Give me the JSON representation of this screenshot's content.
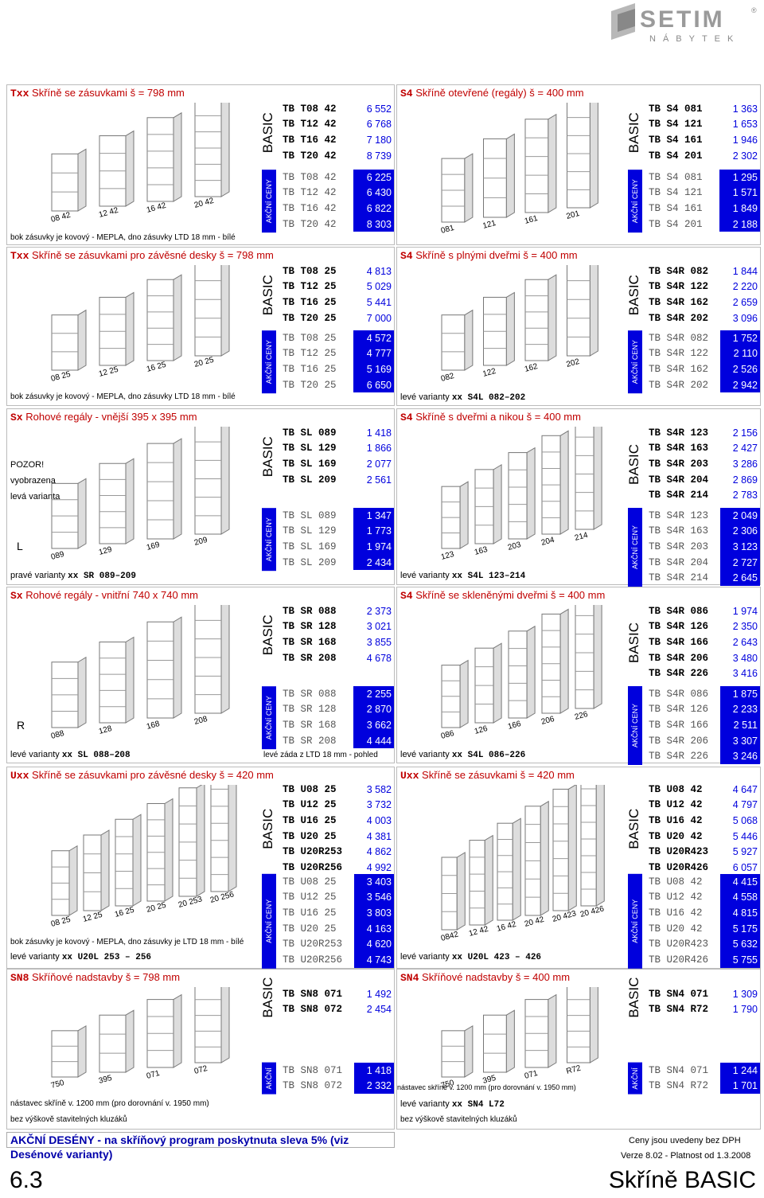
{
  "brand": {
    "name": "SETIM",
    "sub": "NÁBYTEK",
    "reg": "®"
  },
  "labels": {
    "basic": "BASIC",
    "akce": "AKČNÍ CENY"
  },
  "sections": [
    {
      "title_code": "Txx",
      "title_text": "Skříně se zásuvkami  š = 798 mm",
      "basic": [
        [
          "TB T08 42",
          "6 552"
        ],
        [
          "TB T12 42",
          "6 768"
        ],
        [
          "TB T16 42",
          "7 180"
        ],
        [
          "TB T20 42",
          "8 739"
        ]
      ],
      "akce": [
        [
          "TB T08 42",
          "6 225"
        ],
        [
          "TB T12 42",
          "6 430"
        ],
        [
          "TB T16 42",
          "6 822"
        ],
        [
          "TB T20 42",
          "8 303"
        ]
      ],
      "note": "bok zásuvky je kovový - MEPLA, dno zásuvky LTD 18 mm - bílé",
      "drawing_labels": [
        "08 42",
        "12 42",
        "16 42",
        "20 42"
      ]
    },
    {
      "title_code": "S4",
      "title_text": "Skříně otevřené (regály)  š = 400 mm",
      "basic": [
        [
          "TB S4  081",
          "1 363"
        ],
        [
          "TB S4  121",
          "1 653"
        ],
        [
          "TB S4  161",
          "1 946"
        ],
        [
          "TB S4  201",
          "2 302"
        ]
      ],
      "akce": [
        [
          "TB S4  081",
          "1 295"
        ],
        [
          "TB S4  121",
          "1 571"
        ],
        [
          "TB S4  161",
          "1 849"
        ],
        [
          "TB S4  201",
          "2 188"
        ]
      ],
      "drawing_labels": [
        "081",
        "121",
        "161",
        "201"
      ]
    },
    {
      "title_code": "Txx",
      "title_text": "Skříně se zásuvkami pro závěsné desky  š = 798 mm",
      "basic": [
        [
          "TB T08 25",
          "4 813"
        ],
        [
          "TB T12 25",
          "5 029"
        ],
        [
          "TB T16 25",
          "5 441"
        ],
        [
          "TB T20 25",
          "7 000"
        ]
      ],
      "akce": [
        [
          "TB T08 25",
          "4 572"
        ],
        [
          "TB T12 25",
          "4 777"
        ],
        [
          "TB T16 25",
          "5 169"
        ],
        [
          "TB T20 25",
          "6 650"
        ]
      ],
      "note": "bok zásuvky je kovový - MEPLA, dno zásuvky LTD 18 mm - bílé",
      "drawing_labels": [
        "08 25",
        "12 25",
        "16 25",
        "20 25"
      ]
    },
    {
      "title_code": "S4",
      "title_text": "Skříně s plnými dveřmi  š = 400 mm",
      "basic": [
        [
          "TB S4R 082",
          "1 844"
        ],
        [
          "TB S4R 122",
          "2 220"
        ],
        [
          "TB S4R 162",
          "2 659"
        ],
        [
          "TB S4R 202",
          "3 096"
        ]
      ],
      "akce": [
        [
          "TB S4R 082",
          "1 752"
        ],
        [
          "TB S4R 122",
          "2 110"
        ],
        [
          "TB S4R 162",
          "2 526"
        ],
        [
          "TB S4R 202",
          "2 942"
        ]
      ],
      "note_pre": "levé varianty ",
      "note_code": "xx S4L 082–202",
      "drawing_labels": [
        "082",
        "122",
        "162",
        "202"
      ]
    },
    {
      "title_code": "Sx",
      "title_text": "Rohové regály - vnější  395 x 395 mm",
      "basic": [
        [
          "TB SL  089",
          "1 418"
        ],
        [
          "TB SL  129",
          "1 866"
        ],
        [
          "TB SL  169",
          "2 077"
        ],
        [
          "TB SL  209",
          "2 561"
        ]
      ],
      "akce": [
        [
          "TB SL  089",
          "1 347"
        ],
        [
          "TB SL  129",
          "1 773"
        ],
        [
          "TB SL  169",
          "1 974"
        ],
        [
          "TB SL  209",
          "2 434"
        ]
      ],
      "warn": [
        "POZOR!",
        "vyobrazena",
        "levá varianta"
      ],
      "note_pre": "pravé  varianty ",
      "note_code": "xx SR 089–209",
      "drawing_labels": [
        "L",
        "089",
        "129",
        "169",
        "209"
      ]
    },
    {
      "title_code": "S4",
      "title_text": "Skříně s dveřmi a nikou  š = 400 mm",
      "basic": [
        [
          "TB S4R 123",
          "2 156"
        ],
        [
          "TB S4R 163",
          "2 427"
        ],
        [
          "TB S4R 203",
          "3 286"
        ],
        [
          "TB S4R 204",
          "2 869"
        ],
        [
          "TB S4R 214",
          "2 783"
        ]
      ],
      "akce": [
        [
          "TB S4R 123",
          "2 049"
        ],
        [
          "TB S4R 163",
          "2 306"
        ],
        [
          "TB S4R 203",
          "3 123"
        ],
        [
          "TB S4R 204",
          "2 727"
        ],
        [
          "TB S4R 214",
          "2 645"
        ]
      ],
      "note_pre": "levé varianty ",
      "note_code": "xx S4L 123–214",
      "drawing_labels": [
        "123",
        "163",
        "203",
        "204",
        "214"
      ]
    },
    {
      "title_code": "Sx",
      "title_text": "Rohové regály - vnitřní  740 x 740 mm",
      "basic": [
        [
          "TB SR  088",
          "2 373"
        ],
        [
          "TB SR  128",
          "3 021"
        ],
        [
          "TB SR  168",
          "3 855"
        ],
        [
          "TB SR  208",
          "4 678"
        ]
      ],
      "akce": [
        [
          "TB SR  088",
          "2 255"
        ],
        [
          "TB SR  128",
          "2 870"
        ],
        [
          "TB SR  168",
          "3 662"
        ],
        [
          "TB SR  208",
          "4 444"
        ]
      ],
      "note_pre": "levé varianty ",
      "note_code": "xx SL 088–208",
      "note_extra": "levé záda z LTD 18 mm - pohled",
      "drawing_labels": [
        "R",
        "088",
        "128",
        "168",
        "208"
      ]
    },
    {
      "title_code": "S4",
      "title_text": "Skříně se skleněnými dveřmi  š = 400 mm",
      "basic": [
        [
          "TB S4R 086",
          "1 974"
        ],
        [
          "TB S4R 126",
          "2 350"
        ],
        [
          "TB S4R 166",
          "2 643"
        ],
        [
          "TB S4R 206",
          "3 480"
        ],
        [
          "TB S4R 226",
          "3 416"
        ]
      ],
      "akce": [
        [
          "TB S4R 086",
          "1 875"
        ],
        [
          "TB S4R 126",
          "2 233"
        ],
        [
          "TB S4R 166",
          "2 511"
        ],
        [
          "TB S4R 206",
          "3 307"
        ],
        [
          "TB S4R 226",
          "3 246"
        ]
      ],
      "note_pre": "levé varianty ",
      "note_code": "xx S4L 086–226",
      "drawing_labels": [
        "086",
        "126",
        "166",
        "206",
        "226"
      ]
    },
    {
      "title_code": "Uxx",
      "title_text": "Skříně se zásuvkami pro závěsné desky  š = 420 mm",
      "basic": [
        [
          "TB U08 25",
          "3 582"
        ],
        [
          "TB U12 25",
          "3 732"
        ],
        [
          "TB U16 25",
          "4 003"
        ],
        [
          "TB U20 25",
          "4 381"
        ],
        [
          "TB U20R253",
          "4 862"
        ],
        [
          "TB U20R256",
          "4 992"
        ]
      ],
      "akce": [
        [
          "TB U08 25",
          "3 403"
        ],
        [
          "TB U12 25",
          "3 546"
        ],
        [
          "TB U16 25",
          "3 803"
        ],
        [
          "TB U20 25",
          "4 163"
        ],
        [
          "TB U20R253",
          "4 620"
        ],
        [
          "TB U20R256",
          "4 743"
        ]
      ],
      "note": "bok zásuvky je kovový - MEPLA, dno zásuvky je LTD 18 mm - bílé",
      "note_pre": "levé varianty ",
      "note_code": "xx U20L 253 – 256",
      "drawing_labels": [
        "08 25",
        "12 25",
        "16 25",
        "20 25",
        "20 253",
        "20 256"
      ]
    },
    {
      "title_code": "Uxx",
      "title_text": "Skříně se zásuvkami  š = 420 mm",
      "basic": [
        [
          "TB U08 42",
          "4 647"
        ],
        [
          "TB U12 42",
          "4 797"
        ],
        [
          "TB U16 42",
          "5 068"
        ],
        [
          "TB U20 42",
          "5 446"
        ],
        [
          "TB U20R423",
          "5 927"
        ],
        [
          "TB U20R426",
          "6 057"
        ]
      ],
      "akce": [
        [
          "TB U08 42",
          "4 415"
        ],
        [
          "TB U12 42",
          "4 558"
        ],
        [
          "TB U16 42",
          "4 815"
        ],
        [
          "TB U20 42",
          "5 175"
        ],
        [
          "TB U20R423",
          "5 632"
        ],
        [
          "TB U20R426",
          "5 755"
        ]
      ],
      "note_pre": "levé varianty ",
      "note_code": "xx U20L 423 – 426",
      "drawing_labels": [
        "0842",
        "12 42",
        "16 42",
        "20 42",
        "20 423",
        "20 426"
      ]
    },
    {
      "title_code": "SN8",
      "title_text": "Skříňové nadstavby  š = 798 mm",
      "basic": [
        [
          "TB SN8 071",
          "1 492"
        ],
        [
          "TB SN8 072",
          "2 454"
        ]
      ],
      "akce": [
        [
          "TB SN8 071",
          "1 418"
        ],
        [
          "TB SN8 072",
          "2 332"
        ]
      ],
      "note1": "nástavec skříně v. 1200 mm (pro dorovnání v. 1950 mm)",
      "note2": "bez výškově stavitelných kluzáků",
      "drawing_labels": [
        "750",
        "395",
        "071",
        "072"
      ]
    },
    {
      "title_code": "SN4",
      "title_text": "Skříňové nadstavby  š = 400 mm",
      "basic": [
        [
          "TB SN4 071",
          "1 309"
        ],
        [
          "TB SN4 R72",
          "1 790"
        ]
      ],
      "akce": [
        [
          "TB SN4 071",
          "1 244"
        ],
        [
          "TB SN4 R72",
          "1 701"
        ]
      ],
      "note1": "nástavec skříně v. 1200 mm (pro dorovnání v. 1950 mm)",
      "note_pre": "levé varianty ",
      "note_code": "xx SN4 L72",
      "note2": "bez výškově stavitelných kluzáků",
      "drawing_labels": [
        "750",
        "395",
        "071",
        "R72"
      ]
    }
  ],
  "footer": {
    "promo": "AKČNÍ DESÉNY - na skříňový program poskytnuta sleva 5% (viz Desénové varianty)",
    "ceny": "Ceny jsou uvedeny bez DPH",
    "verze": "Verze 8.02 - Platnost od 1.3.2008",
    "page_num": "6.3",
    "page_title": "Skříně BASIC"
  }
}
